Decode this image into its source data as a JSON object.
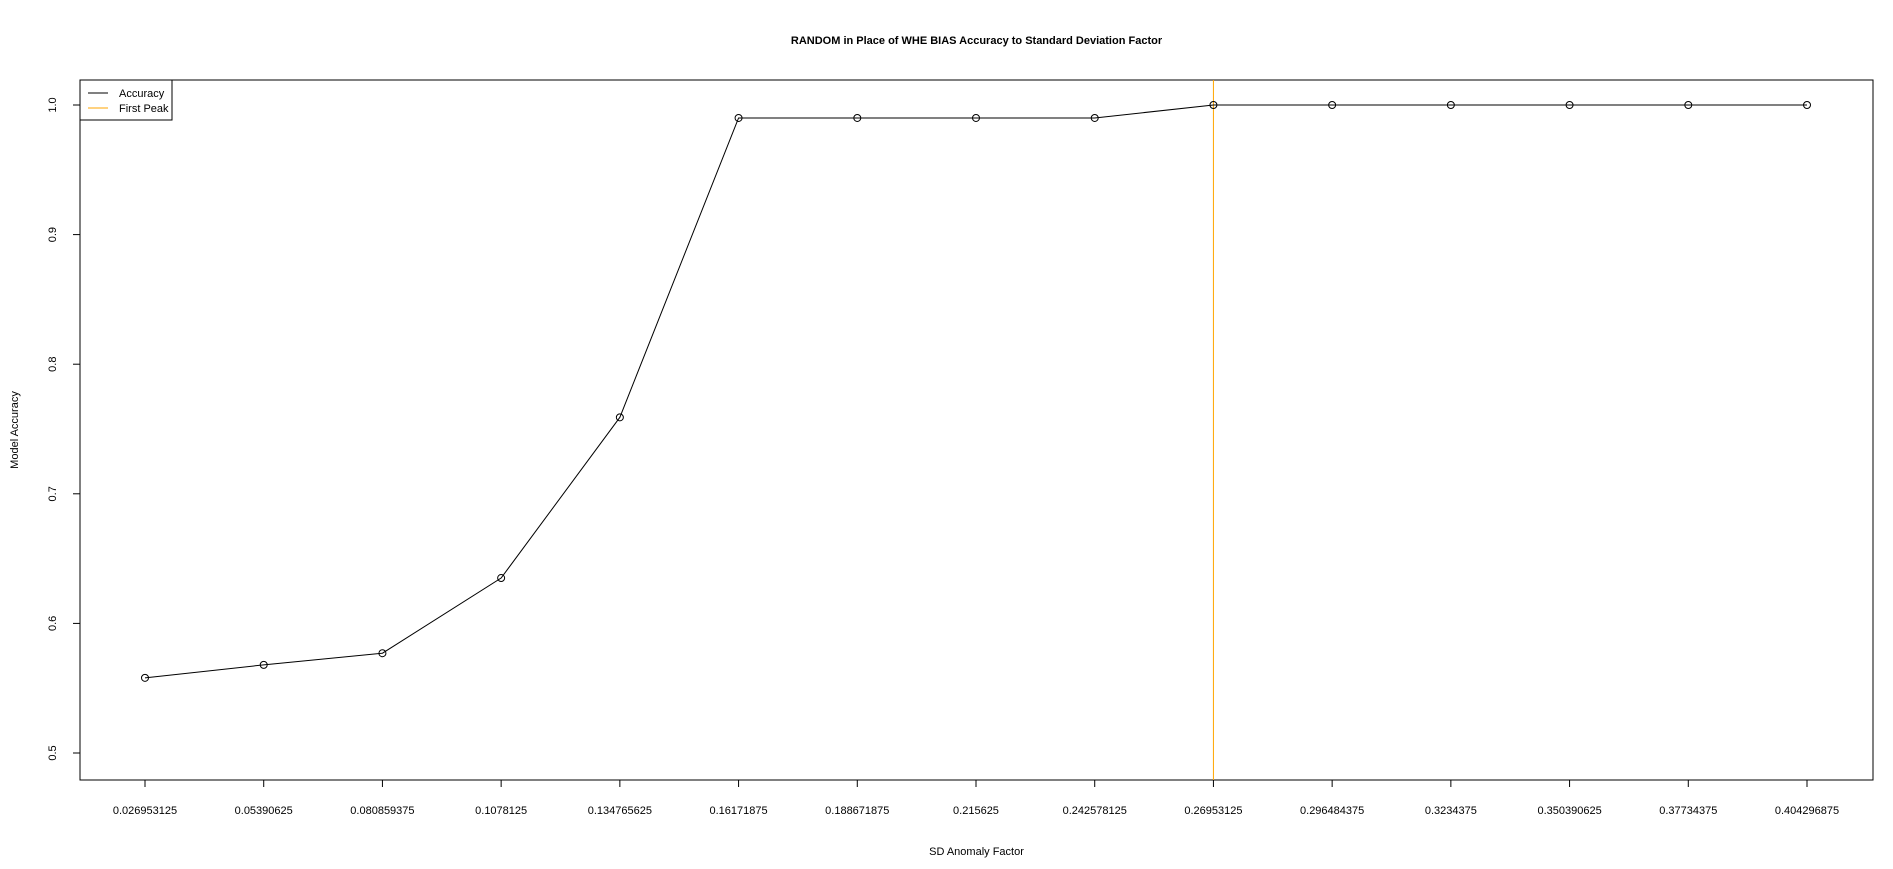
{
  "chart_data": {
    "type": "line",
    "title": "RANDOM in Place of WHE BIAS Accuracy to Standard Deviation Factor",
    "xlabel": "SD Anomaly Factor",
    "ylabel": "Model Accuracy",
    "categories": [
      "0.026953125",
      "0.05390625",
      "0.080859375",
      "0.1078125",
      "0.134765625",
      "0.16171875",
      "0.188671875",
      "0.215625",
      "0.242578125",
      "0.26953125",
      "0.296484375",
      "0.3234375",
      "0.350390625",
      "0.37734375",
      "0.404296875"
    ],
    "series": [
      {
        "name": "Accuracy",
        "color": "#000000",
        "values": [
          0.558,
          0.568,
          0.577,
          0.635,
          0.759,
          0.99,
          0.99,
          0.99,
          0.99,
          1.0,
          1.0,
          1.0,
          1.0,
          1.0,
          1.0
        ]
      }
    ],
    "peak": {
      "name": "First Peak",
      "x": "0.26953125",
      "color": "#FFA500"
    },
    "yticks": [
      "0.5",
      "0.6",
      "0.7",
      "0.8",
      "0.9",
      "1.0"
    ],
    "ylim": [
      0.5,
      1.0
    ],
    "grid": false,
    "legend_position": "top-left"
  }
}
